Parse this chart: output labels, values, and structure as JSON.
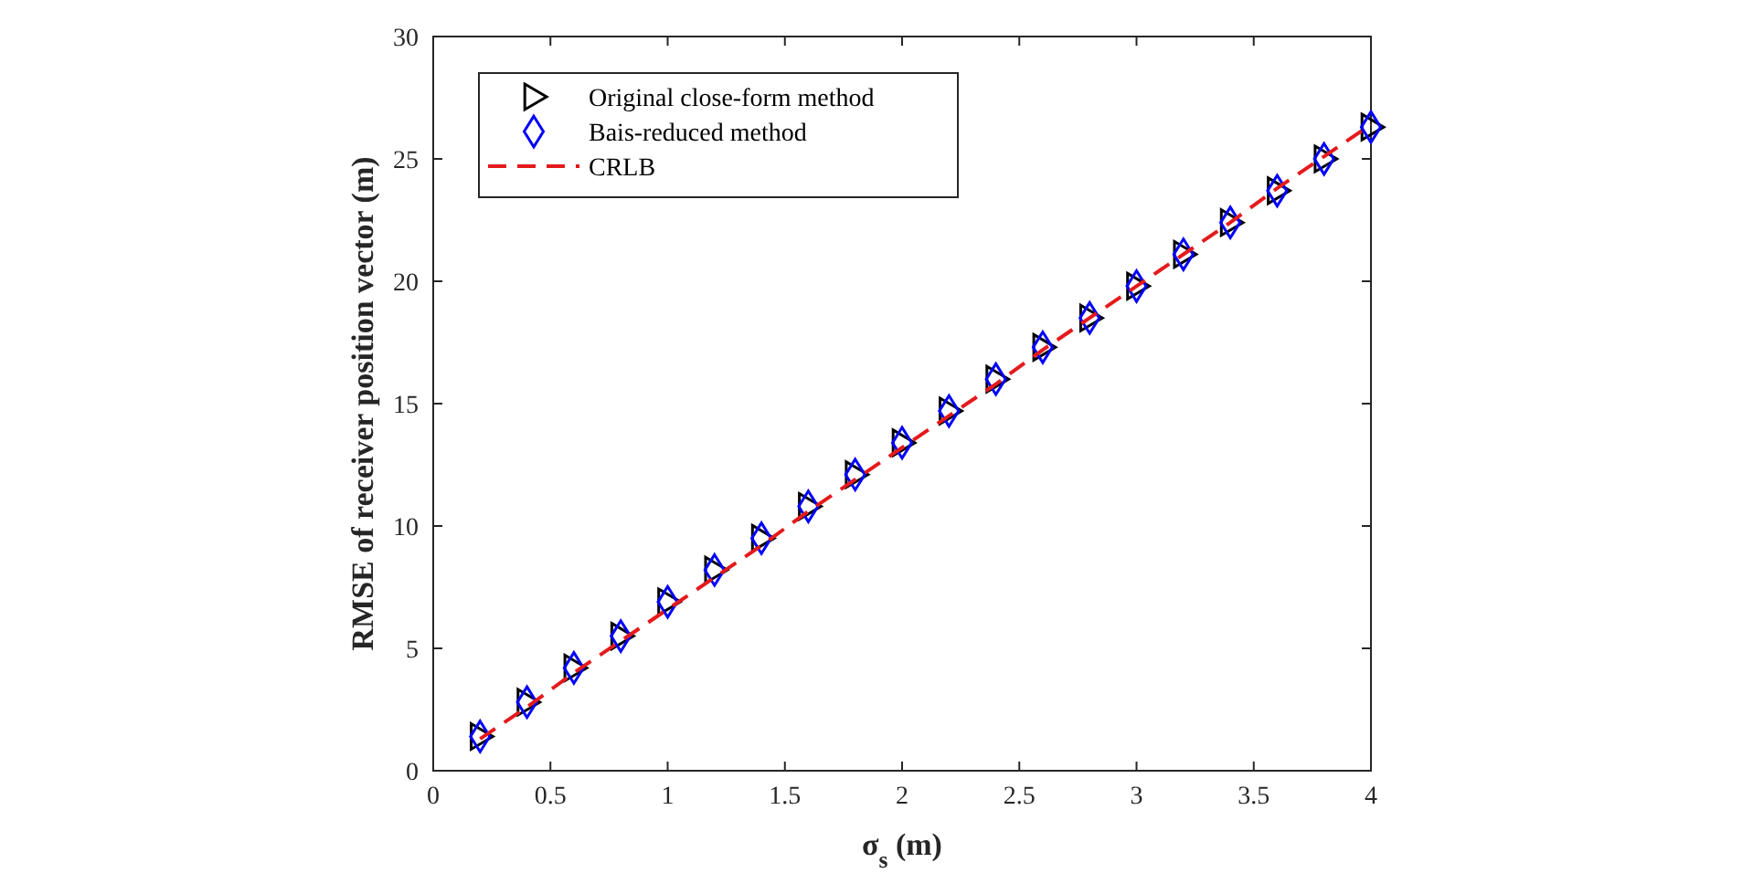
{
  "chart_data": {
    "type": "scatter",
    "xlabel": "σ$_{s}$ (m)",
    "ylabel": "RMSE of receiver position vector (m)",
    "x": [
      0.2,
      0.4,
      0.6,
      0.8,
      1.0,
      1.2,
      1.4,
      1.6,
      1.8,
      2.0,
      2.2,
      2.4,
      2.6,
      2.8,
      3.0,
      3.2,
      3.4,
      3.6,
      3.8,
      4.0
    ],
    "series": [
      {
        "name": "Original close-form method",
        "color": "#000000",
        "marker": "triangle",
        "values": [
          1.4,
          2.8,
          4.2,
          5.5,
          6.9,
          8.2,
          9.5,
          10.8,
          12.1,
          13.4,
          14.7,
          16.0,
          17.3,
          18.5,
          19.8,
          21.1,
          22.4,
          23.7,
          25.0,
          26.3
        ]
      },
      {
        "name": "Bais-reduced method",
        "color": "#0000ff",
        "marker": "diamond",
        "values": [
          1.4,
          2.8,
          4.2,
          5.5,
          6.9,
          8.2,
          9.5,
          10.8,
          12.1,
          13.4,
          14.7,
          16.0,
          17.3,
          18.5,
          19.8,
          21.1,
          22.4,
          23.7,
          25.0,
          26.3
        ]
      },
      {
        "name": "CRLB",
        "color": "#e41a1c",
        "type": "line",
        "line_style": "dashed",
        "marker": "none",
        "values": [
          1.3,
          2.6,
          4.0,
          5.3,
          6.6,
          7.9,
          9.2,
          10.6,
          11.9,
          13.2,
          14.5,
          15.8,
          17.2,
          18.5,
          19.8,
          21.1,
          22.4,
          23.8,
          25.1,
          26.4
        ]
      }
    ],
    "xlim": [
      0,
      4
    ],
    "xticks": [
      0,
      0.5,
      1,
      1.5,
      2,
      2.5,
      3,
      3.5,
      4
    ],
    "ylim": [
      0,
      30
    ],
    "yticks": [
      0,
      5,
      10,
      15,
      20,
      25,
      30
    ],
    "legend": "top left",
    "grid": false
  }
}
